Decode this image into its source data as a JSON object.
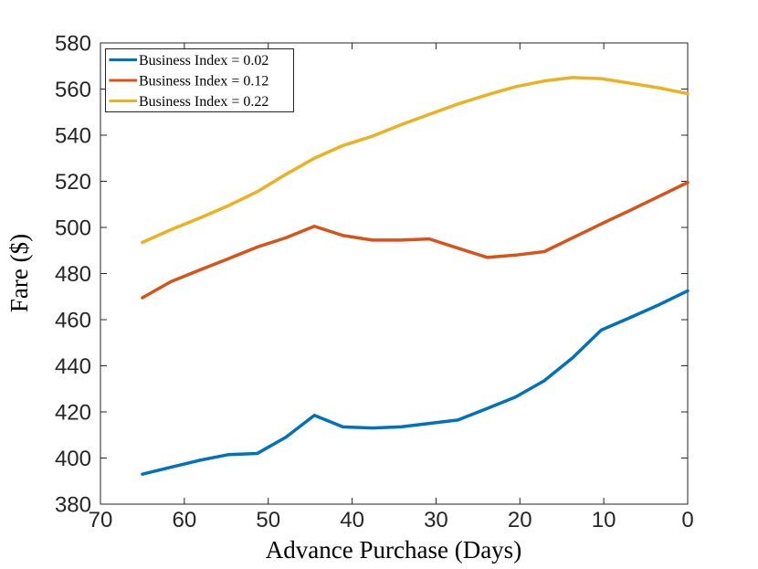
{
  "figure": {
    "background": "#ffffff",
    "axis_color": "#262626",
    "line_width": 3.5
  },
  "chart_data": {
    "type": "line",
    "title": "",
    "xlabel": "Advance Purchase (Days)",
    "ylabel": "Fare ($)",
    "grid": false,
    "legend_position": "top-left",
    "x_axis": {
      "min": 0,
      "max": 70,
      "reversed": true,
      "ticks": [
        70,
        60,
        50,
        40,
        30,
        20,
        10,
        0
      ]
    },
    "y_axis": {
      "min": 380,
      "max": 580,
      "ticks": [
        380,
        400,
        420,
        440,
        460,
        480,
        500,
        520,
        540,
        560,
        580
      ]
    },
    "x": [
      65,
      61.6,
      58.2,
      54.7,
      51.3,
      47.9,
      44.5,
      41.1,
      37.6,
      34.2,
      30.8,
      27.4,
      23.9,
      20.5,
      17.1,
      13.7,
      10.3,
      6.8,
      3.4,
      0
    ],
    "series": [
      {
        "name": "Business Index = 0.02",
        "color": "#0072BD",
        "values": [
          393,
          396,
          399,
          401.5,
          402,
          409,
          418.5,
          413.5,
          413,
          413.5,
          415,
          416.5,
          421.5,
          426.5,
          433.5,
          443.5,
          455.5,
          461,
          466.5,
          472.5
        ]
      },
      {
        "name": "Business Index = 0.12",
        "color": "#D95319",
        "values": [
          469.5,
          476.5,
          481.5,
          486.5,
          491.5,
          495.5,
          500.5,
          496.5,
          494.5,
          494.5,
          495,
          491,
          487,
          488,
          489.5,
          495.5,
          501.5,
          507.5,
          513.5,
          519.5
        ]
      },
      {
        "name": "Business Index = 0.22",
        "color": "#EDB120",
        "values": [
          493.5,
          499,
          504,
          509.5,
          515.5,
          523,
          530,
          535.5,
          539.5,
          544.5,
          549,
          553.5,
          557.5,
          561,
          563.5,
          565,
          564.5,
          562.5,
          560.5,
          558
        ]
      }
    ]
  }
}
